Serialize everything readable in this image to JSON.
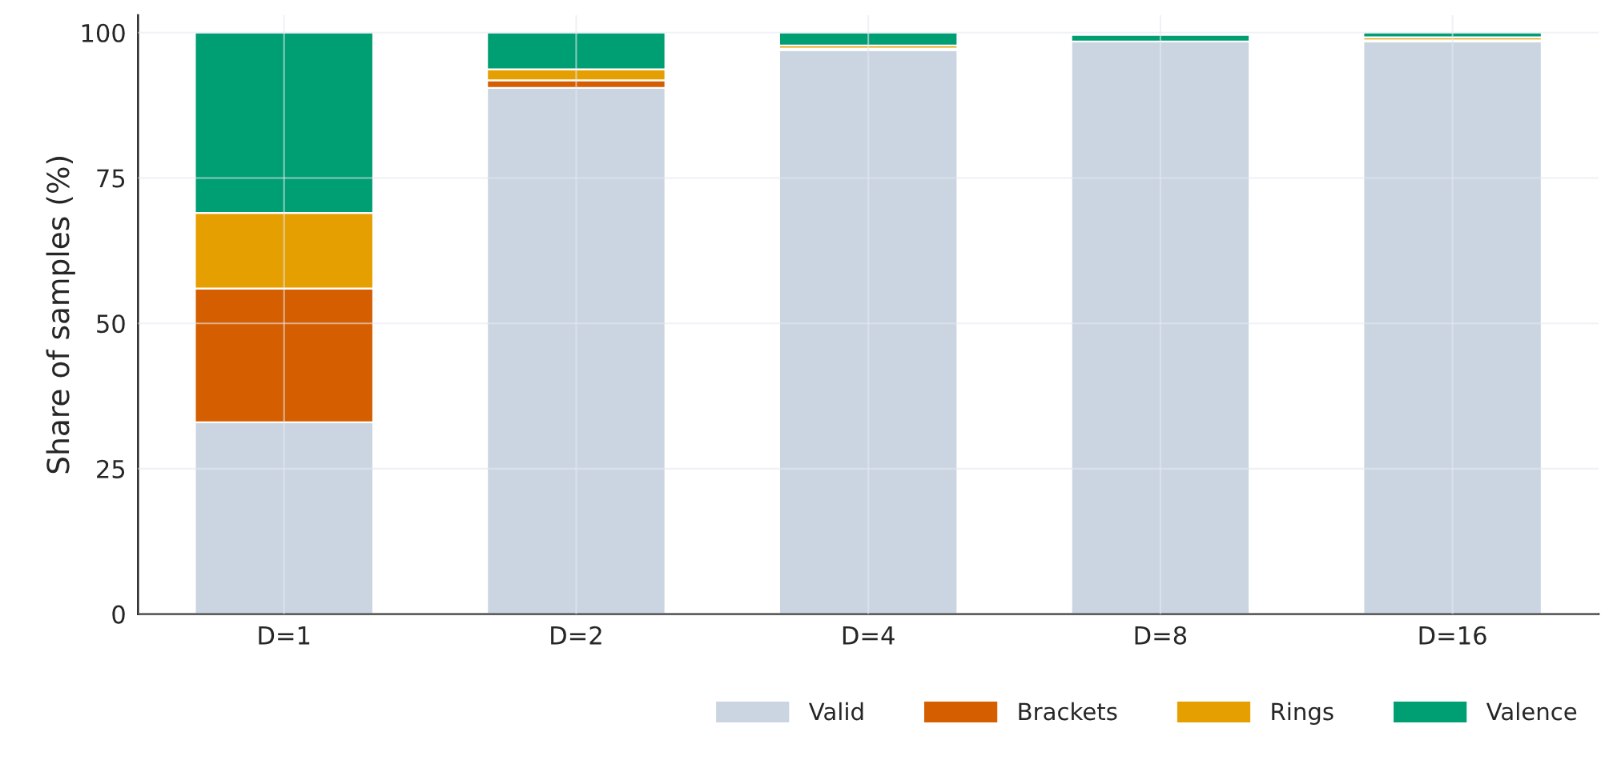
{
  "chart_data": {
    "type": "bar",
    "stacked": true,
    "ylabel": "Share of samples (%)",
    "categories": [
      "D=1",
      "D=2",
      "D=4",
      "D=8",
      "D=16"
    ],
    "series": [
      {
        "name": "Valid",
        "color": "#cbd5e1",
        "values": [
          33.0,
          90.5,
          97.0,
          98.5,
          98.5
        ]
      },
      {
        "name": "Brackets",
        "color": "#d55e00",
        "values": [
          23.0,
          1.3,
          0.3,
          null,
          0.2
        ]
      },
      {
        "name": "Rings",
        "color": "#e69f00",
        "values": [
          13.0,
          1.9,
          0.5,
          null,
          0.5
        ]
      },
      {
        "name": "Valence",
        "color": "#009e73",
        "values": [
          31.0,
          6.3,
          2.2,
          1.1,
          0.8
        ]
      }
    ],
    "ylim": [
      0,
      103
    ],
    "yticks": [
      0,
      25,
      50,
      75,
      100
    ],
    "grid": true,
    "legend": "bottom right"
  }
}
